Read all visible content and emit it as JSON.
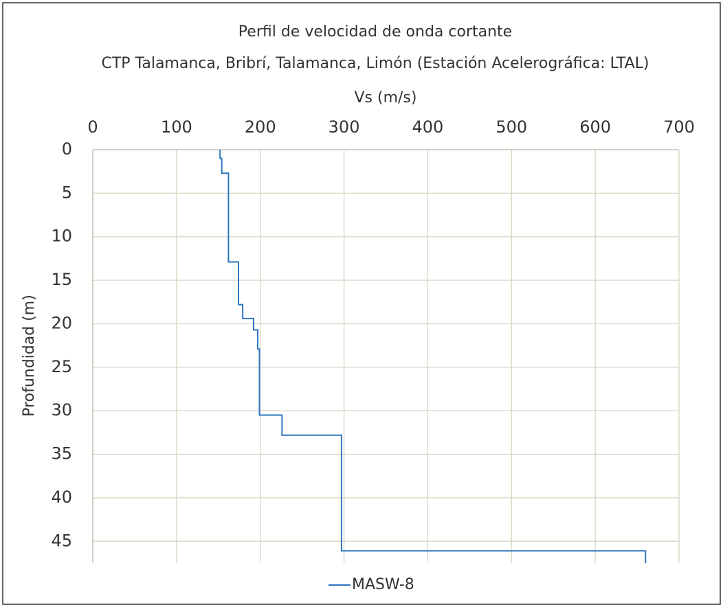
{
  "chart_data": {
    "type": "line",
    "title": "Perfil de velocidad de onda cortante",
    "subtitle": "CTP Talamanca, Bribrí, Talamanca, Limón (Estación Acelerográfica: LTAL)",
    "xlabel": "Vs (m/s)",
    "ylabel": "Profundidad (m)",
    "xlim": [
      0,
      700
    ],
    "xticks": [
      0,
      100,
      200,
      300,
      400,
      500,
      600,
      700
    ],
    "ylim": [
      0,
      47.5
    ],
    "yticks": [
      0,
      5,
      10,
      15,
      20,
      25,
      30,
      35,
      40,
      45
    ],
    "y_inverted": true,
    "x_axis_position": "top",
    "grid": true,
    "legend": "bottom",
    "series": [
      {
        "name": "MASW-8",
        "color": "#2e75c0",
        "x": [
          152,
          152,
          154,
          154,
          162,
          162,
          174,
          174,
          179,
          179,
          192,
          192,
          197,
          197,
          199,
          199,
          226,
          226,
          297,
          297,
          660,
          660
        ],
        "values": [
          0,
          1,
          1,
          2.7,
          2.7,
          12.9,
          12.9,
          17.8,
          17.8,
          19.4,
          19.4,
          20.7,
          20.7,
          22.9,
          22.9,
          30.5,
          30.5,
          32.8,
          32.8,
          46.1,
          46.1,
          47.5
        ]
      }
    ]
  }
}
